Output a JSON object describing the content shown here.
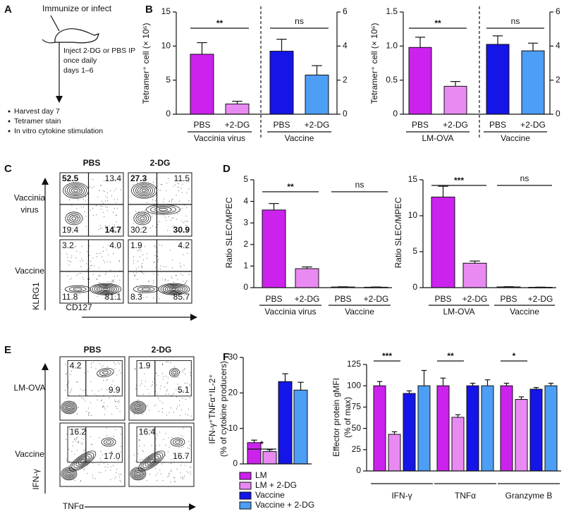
{
  "panel_labels": [
    "A",
    "B",
    "C",
    "D",
    "E",
    "F"
  ],
  "schematic": {
    "top": "Immunize or infect",
    "injection": [
      "Inject 2-DG or PBS IP",
      "once daily",
      "days 1–6"
    ],
    "steps": [
      "Harvest day 7",
      "Tetramer stain",
      "In vitro cytokine stimulation"
    ]
  },
  "chart_data": [
    {
      "type": "bar",
      "ylabel": "Tetramer⁺ cell (× 10⁶)",
      "ylim": [
        0,
        15
      ],
      "yticks": [
        0,
        5,
        10,
        15
      ],
      "y2lim": [
        0,
        6
      ],
      "y2ticks": [
        0,
        2,
        4,
        6
      ],
      "groups": [
        {
          "label": "Vaccinia virus",
          "categories": [
            "PBS",
            "+2-DG"
          ],
          "values": [
            8.8,
            1.5
          ],
          "errors": [
            1.7,
            0.4
          ],
          "colors": [
            "#cc22ee",
            "#e98af2"
          ],
          "significance": "**"
        },
        {
          "label": "Vaccine",
          "axis": "y2",
          "categories": [
            "PBS",
            "+2-DG"
          ],
          "values": [
            3.7,
            2.3
          ],
          "errors": [
            0.7,
            0.55
          ],
          "colors": [
            "#1515e8",
            "#4d9ef5"
          ],
          "significance": "ns"
        }
      ]
    },
    {
      "type": "bar",
      "ylabel": "Tetramer⁺ cell (× 10⁶)",
      "ylim": [
        0,
        1.5
      ],
      "yticks": [
        0,
        0.5,
        {
          "value": 1,
          "label": "1.0"
        },
        1.5
      ],
      "y2lim": [
        0,
        6
      ],
      "y2ticks": [
        0,
        2,
        4,
        6
      ],
      "groups": [
        {
          "label": "LM-OVA",
          "categories": [
            "PBS",
            "+2-DG"
          ],
          "values": [
            0.98,
            0.41
          ],
          "errors": [
            0.15,
            0.07
          ],
          "colors": [
            "#cc22ee",
            "#e98af2"
          ],
          "significance": "**"
        },
        {
          "label": "Vaccine",
          "axis": "y2",
          "categories": [
            "PBS",
            "+2-DG"
          ],
          "values": [
            4.1,
            3.72
          ],
          "errors": [
            0.5,
            0.45
          ],
          "colors": [
            "#1515e8",
            "#4d9ef5"
          ],
          "significance": "ns"
        }
      ]
    },
    {
      "type": "bar",
      "ylabel": "Ratio SLEC/MPEC",
      "ylim": [
        0,
        5
      ],
      "yticks": [
        0,
        1,
        2,
        3,
        4,
        5
      ],
      "groups": [
        {
          "label": "Vaccinia virus",
          "categories": [
            "PBS",
            "+2-DG"
          ],
          "values": [
            3.6,
            0.88
          ],
          "errors": [
            0.3,
            0.08
          ],
          "colors": [
            "#cc22ee",
            "#e98af2"
          ],
          "significance": "**"
        },
        {
          "label": "Vaccine",
          "categories": [
            "PBS",
            "+2-DG"
          ],
          "values": [
            0.03,
            0.02
          ],
          "errors": [
            0.01,
            0.01
          ],
          "colors": [
            "#1515e8",
            "#4d9ef5"
          ],
          "significance": "ns"
        }
      ]
    },
    {
      "type": "bar",
      "ylabel": "Ratio SLEC/MPEC",
      "ylim": [
        0,
        15
      ],
      "yticks": [
        0,
        5,
        10,
        15
      ],
      "groups": [
        {
          "label": "LM-OVA",
          "categories": [
            "PBS",
            "+2-DG"
          ],
          "values": [
            12.6,
            3.4
          ],
          "errors": [
            1.5,
            0.3
          ],
          "colors": [
            "#cc22ee",
            "#e98af2"
          ],
          "significance": "***"
        },
        {
          "label": "Vaccine",
          "categories": [
            "PBS",
            "+2-DG"
          ],
          "values": [
            0.1,
            0.05
          ],
          "errors": [
            0.03,
            0.02
          ],
          "colors": [
            "#1515e8",
            "#4d9ef5"
          ],
          "significance": "ns"
        }
      ]
    },
    {
      "type": "bar",
      "ylabel": [
        "IFN-γ⁺TNFα⁺IL-2⁺",
        "(% of cytokine producers)"
      ],
      "ylim": [
        0,
        30
      ],
      "yticks": [
        0,
        10,
        20,
        30
      ],
      "groups": [
        {
          "values": [
            6.0,
            3.5,
            23.2,
            20.8
          ],
          "errors": [
            0.7,
            0.5,
            2.2,
            2.2
          ],
          "colors": [
            "#cc22ee",
            "#e98af2",
            "#1515e8",
            "#4d9ef5"
          ],
          "significance": "*"
        }
      ],
      "legend": [
        {
          "name": "LM",
          "color": "#cc22ee"
        },
        {
          "name": "LM + 2-DG",
          "color": "#e98af2"
        },
        {
          "name": "Vaccine",
          "color": "#1515e8"
        },
        {
          "name": "Vaccine + 2-DG",
          "color": "#4d9ef5"
        }
      ]
    },
    {
      "type": "bar",
      "ylabel": [
        "Effector protein gMFI",
        "(% of max)"
      ],
      "ylim": [
        0,
        125
      ],
      "yticks": [
        0,
        25,
        50,
        75,
        100,
        125
      ],
      "groups": [
        {
          "label": "IFN-γ",
          "values": [
            100,
            43,
            91,
            100
          ],
          "errors": [
            5,
            3,
            3,
            18
          ],
          "colors": [
            "#cc22ee",
            "#e98af2",
            "#1515e8",
            "#4d9ef5"
          ],
          "significance": "***"
        },
        {
          "label": "TNFα",
          "values": [
            100,
            63,
            100,
            100
          ],
          "errors": [
            9,
            3,
            3,
            7
          ],
          "colors": [
            "#cc22ee",
            "#e98af2",
            "#1515e8",
            "#4d9ef5"
          ],
          "significance": "**"
        },
        {
          "label": "Granzyme B",
          "values": [
            100,
            84,
            96,
            100
          ],
          "errors": [
            3,
            3,
            2,
            3
          ],
          "colors": [
            "#cc22ee",
            "#e98af2",
            "#1515e8",
            "#4d9ef5"
          ],
          "significance": "*"
        }
      ]
    }
  ],
  "flow_panels": [
    {
      "col_titles": [
        "PBS",
        "2-DG"
      ],
      "row_titles": [
        [
          "Vaccinia",
          "virus"
        ],
        [
          "Vaccine"
        ]
      ],
      "x_label": "CD127",
      "y_label": "KLRG1",
      "highlight_color": "#cc22cc",
      "plots": [
        [
          {
            "tl": "52.5",
            "tr": "13.4",
            "bl": "19.4",
            "br": "14.7"
          },
          {
            "tl": "27.3",
            "tr": "11.5",
            "bl": "30.2",
            "br": "30.9"
          }
        ],
        [
          {
            "tl": "3.2",
            "tr": "4.0",
            "bl": "11.8",
            "br": "81.1"
          },
          {
            "tl": "1.9",
            "tr": "4.2",
            "bl": "8.3",
            "br": "85.7"
          }
        ]
      ]
    },
    {
      "col_titles": [
        "PBS",
        "2-DG"
      ],
      "row_titles": [
        [
          "LM-OVA"
        ],
        [
          "Vaccine"
        ]
      ],
      "x_label": "TNFα",
      "y_label": "IFN-γ",
      "plots": [
        [
          {
            "left": "4.2",
            "right": "9.9"
          },
          {
            "left": "1.9",
            "right": "5.1"
          }
        ],
        [
          {
            "left": "16.2",
            "right": "17.0"
          },
          {
            "left": "16.4",
            "right": "16.7"
          }
        ]
      ]
    }
  ]
}
